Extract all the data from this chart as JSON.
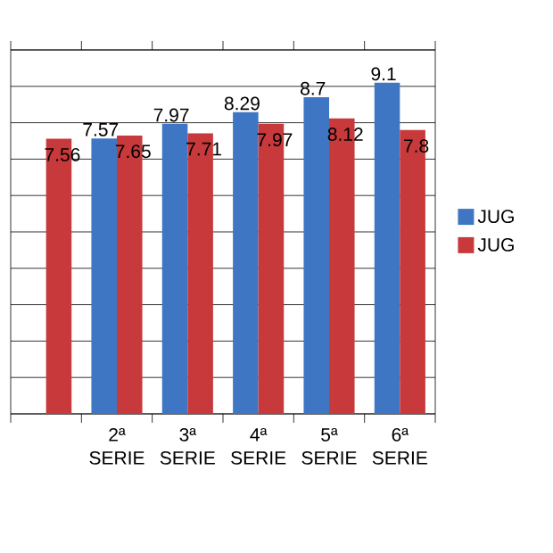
{
  "chart_data": {
    "type": "bar",
    "categories": [
      null,
      "2ª SERIE",
      "3ª SERIE",
      "4ª SERIE",
      "5ª SERIE",
      "6ª SERIE"
    ],
    "series": [
      {
        "name": "JUG",
        "color": "#3f76c4",
        "values": [
          null,
          7.57,
          7.97,
          8.29,
          8.7,
          9.1
        ],
        "value_labels": [
          null,
          "7.57",
          "7.97",
          "8.29",
          "8.7",
          "9.1"
        ]
      },
      {
        "name": "JUG",
        "color": "#c8393b",
        "values": [
          7.56,
          7.65,
          7.71,
          7.97,
          8.12,
          7.8
        ],
        "value_labels": [
          "7.56",
          "7.65",
          "7.71",
          "7.97",
          "8.12",
          "7.8"
        ]
      }
    ],
    "ylim": [
      0,
      10
    ],
    "yticks": [
      {
        "value": 0,
        "label": null
      },
      {
        "value": 1,
        "label": null
      },
      {
        "value": 2,
        "label": null
      },
      {
        "value": 3,
        "label": null
      },
      {
        "value": 4,
        "label": null
      },
      {
        "value": 5,
        "label": null
      },
      {
        "value": 6,
        "label": null
      },
      {
        "value": 7,
        "label": null
      },
      {
        "value": 8,
        "label": null
      },
      {
        "value": 9,
        "label": null
      },
      {
        "value": 10,
        "label": null
      }
    ],
    "grid": "y",
    "legend": "right",
    "tick_labels": "x"
  }
}
